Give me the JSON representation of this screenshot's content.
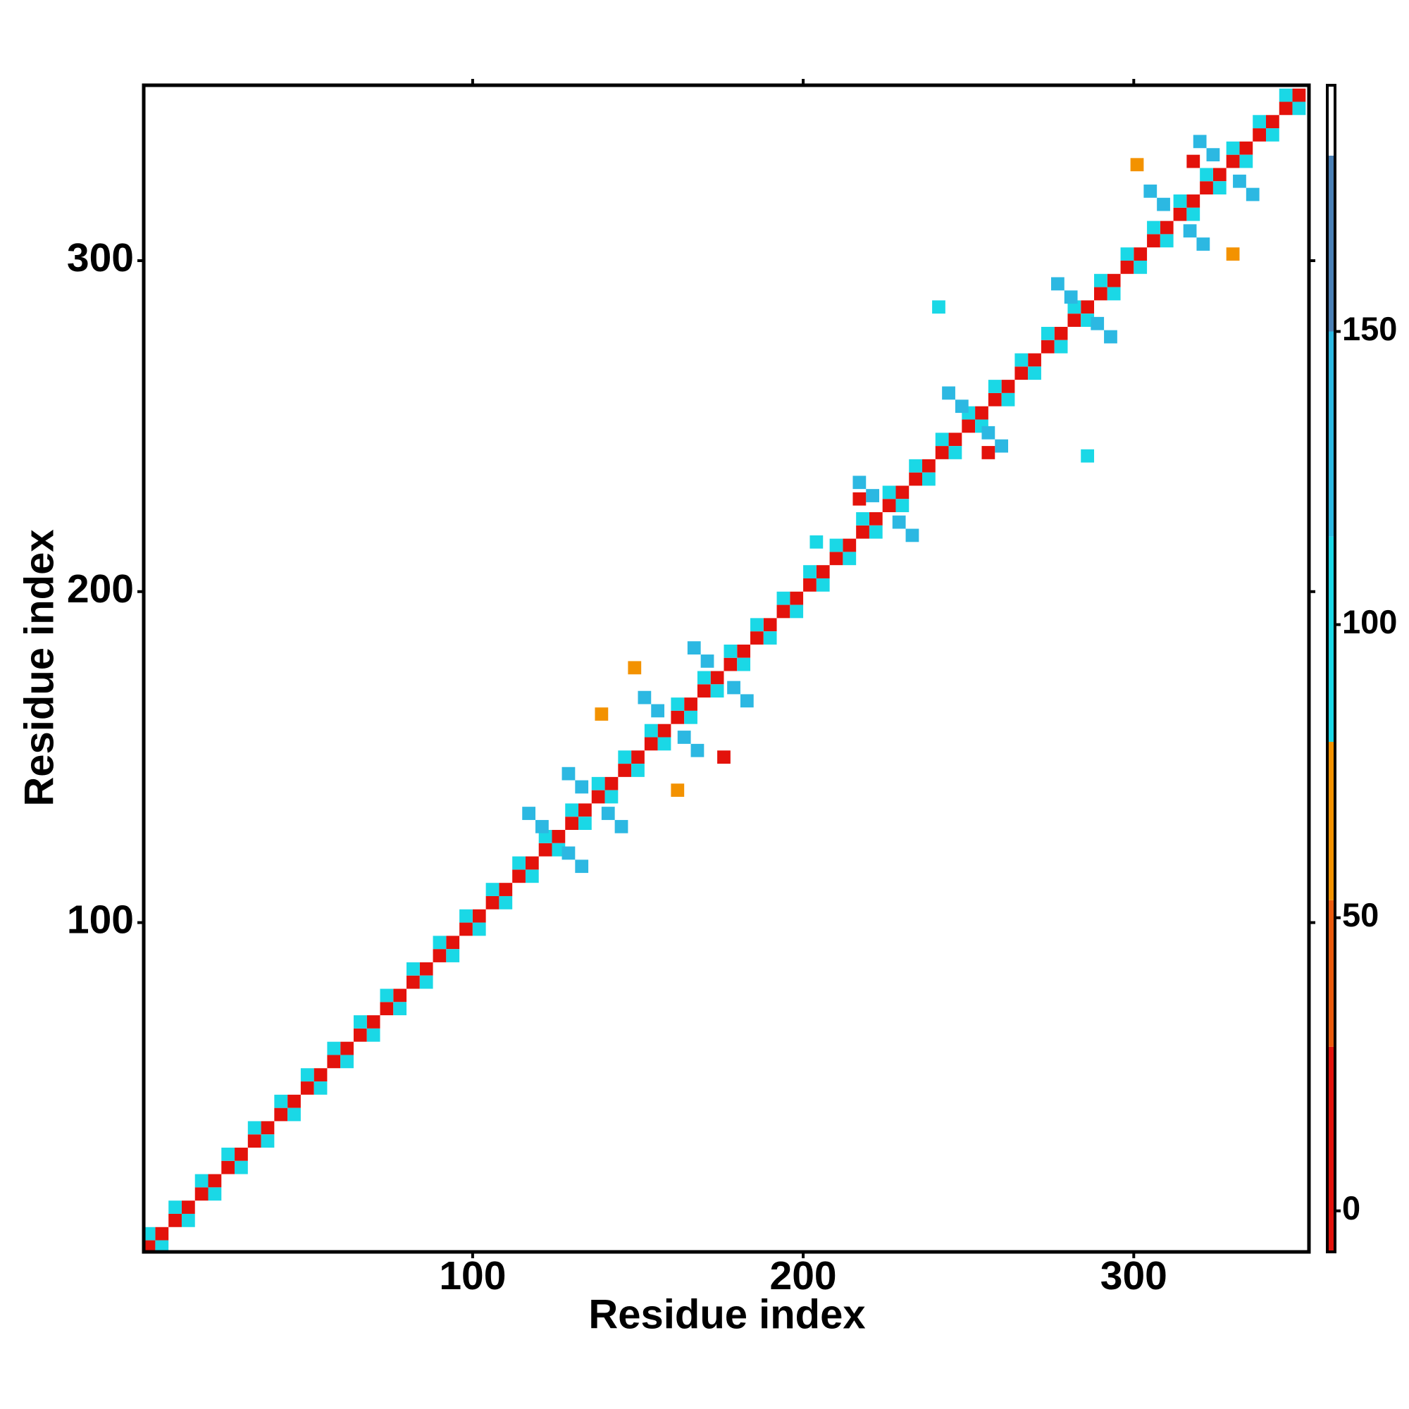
{
  "chart_data": {
    "type": "heatmap",
    "xlabel": "Residue index",
    "ylabel": "Residue index",
    "xlim": [
      0.5,
      353
    ],
    "ylim": [
      0.5,
      353
    ],
    "xticks": [
      100,
      200,
      300
    ],
    "yticks": [
      100,
      200,
      300
    ],
    "clim": [
      -7,
      192
    ],
    "cticks": [
      0,
      50,
      100,
      150
    ],
    "colorscale": [
      {
        "min": -7,
        "max": 28,
        "color": "#e3120b"
      },
      {
        "min": 28,
        "max": 53,
        "color": "#ea5a0c"
      },
      {
        "min": 53,
        "max": 80,
        "color": "#f39200"
      },
      {
        "min": 80,
        "max": 115,
        "color": "#1ad8e6"
      },
      {
        "min": 115,
        "max": 150,
        "color": "#2cb8e2"
      },
      {
        "min": 150,
        "max": 180,
        "color": "#4a7fb5"
      },
      {
        "min": 180,
        "max": 192,
        "color": "#ffffff"
      }
    ],
    "x": [
      2,
      6,
      10,
      14,
      18,
      22,
      26,
      30,
      34,
      38,
      42,
      46,
      50,
      54,
      58,
      62,
      66,
      70,
      74,
      78,
      82,
      86,
      90,
      94,
      98,
      102,
      106,
      110,
      114,
      118,
      122,
      126,
      130,
      134,
      138,
      142,
      146,
      150,
      154,
      158,
      162,
      166,
      170,
      174,
      178,
      182,
      186,
      190,
      194,
      198,
      202,
      206,
      210,
      214,
      218,
      222,
      226,
      230,
      234,
      238,
      242,
      246,
      250,
      254,
      258,
      262,
      266,
      270,
      274,
      278,
      282,
      286,
      290,
      294,
      298,
      302,
      306,
      310,
      314,
      318,
      322,
      326,
      330,
      334,
      338,
      342,
      346,
      350,
      2,
      10,
      18,
      26,
      34,
      42,
      50,
      58,
      66,
      74,
      82,
      90,
      98,
      106,
      114,
      122,
      130,
      138,
      146,
      154,
      162,
      170,
      178,
      186,
      194,
      202,
      210,
      218,
      226,
      234,
      242,
      250,
      258,
      266,
      274,
      282,
      290,
      298,
      306,
      314,
      322,
      330,
      338,
      346,
      6,
      14,
      22,
      30,
      38,
      46,
      54,
      62,
      70,
      78,
      86,
      94,
      102,
      110,
      118,
      126,
      134,
      142,
      150,
      158,
      166,
      174,
      182,
      190,
      198,
      206,
      214,
      222,
      230,
      238,
      246,
      254,
      262,
      270,
      278,
      286,
      294,
      302,
      310,
      318,
      326,
      334,
      342,
      350,
      117,
      121,
      129,
      133,
      129,
      133,
      141,
      145,
      152,
      156,
      164,
      168,
      167,
      171,
      179,
      183,
      217,
      221,
      229,
      233,
      244,
      248,
      256,
      260,
      277,
      281,
      289,
      293,
      305,
      309,
      317,
      321,
      320,
      324,
      332,
      336,
      149,
      176,
      162,
      139,
      318,
      330,
      301,
      217,
      256,
      286,
      241,
      204
    ],
    "y": [
      2,
      6,
      10,
      14,
      18,
      22,
      26,
      30,
      34,
      38,
      42,
      46,
      50,
      54,
      58,
      62,
      66,
      70,
      74,
      78,
      82,
      86,
      90,
      94,
      98,
      102,
      106,
      110,
      114,
      118,
      122,
      126,
      130,
      134,
      138,
      142,
      146,
      150,
      154,
      158,
      162,
      166,
      170,
      174,
      178,
      182,
      186,
      190,
      194,
      198,
      202,
      206,
      210,
      214,
      218,
      222,
      226,
      230,
      234,
      238,
      242,
      246,
      250,
      254,
      258,
      262,
      266,
      270,
      274,
      278,
      282,
      286,
      290,
      294,
      298,
      302,
      306,
      310,
      314,
      318,
      322,
      326,
      330,
      334,
      338,
      342,
      346,
      350,
      6,
      14,
      22,
      30,
      38,
      46,
      54,
      62,
      70,
      78,
      86,
      94,
      102,
      110,
      118,
      126,
      134,
      142,
      150,
      158,
      166,
      174,
      182,
      190,
      198,
      206,
      214,
      222,
      230,
      238,
      246,
      254,
      262,
      270,
      278,
      286,
      294,
      302,
      310,
      318,
      326,
      334,
      342,
      350,
      2,
      10,
      18,
      26,
      34,
      42,
      50,
      58,
      66,
      74,
      82,
      90,
      98,
      106,
      114,
      122,
      130,
      138,
      146,
      154,
      162,
      170,
      178,
      186,
      194,
      202,
      210,
      218,
      226,
      234,
      242,
      250,
      258,
      266,
      274,
      282,
      290,
      298,
      306,
      314,
      322,
      330,
      338,
      346,
      133,
      129,
      121,
      117,
      145,
      141,
      133,
      129,
      168,
      164,
      156,
      152,
      183,
      179,
      171,
      167,
      233,
      229,
      221,
      217,
      260,
      256,
      248,
      244,
      293,
      289,
      281,
      277,
      321,
      317,
      309,
      305,
      336,
      332,
      324,
      320,
      177,
      150,
      140,
      163,
      330,
      302,
      329,
      228,
      242,
      241,
      286,
      215
    ],
    "values": [
      10,
      10,
      10,
      10,
      10,
      10,
      10,
      10,
      10,
      10,
      10,
      10,
      10,
      10,
      10,
      10,
      10,
      10,
      10,
      10,
      10,
      10,
      10,
      10,
      10,
      10,
      10,
      10,
      10,
      10,
      10,
      10,
      10,
      10,
      10,
      10,
      10,
      10,
      10,
      10,
      10,
      10,
      10,
      10,
      10,
      10,
      10,
      10,
      10,
      10,
      10,
      10,
      10,
      10,
      10,
      10,
      10,
      10,
      10,
      10,
      10,
      10,
      10,
      10,
      10,
      10,
      10,
      10,
      10,
      10,
      10,
      10,
      10,
      10,
      10,
      10,
      10,
      10,
      10,
      10,
      10,
      10,
      10,
      10,
      10,
      10,
      10,
      10,
      95,
      95,
      95,
      95,
      95,
      95,
      95,
      95,
      95,
      95,
      95,
      95,
      95,
      95,
      95,
      95,
      95,
      95,
      95,
      95,
      95,
      95,
      95,
      95,
      95,
      95,
      95,
      95,
      95,
      95,
      95,
      95,
      95,
      95,
      95,
      95,
      95,
      95,
      95,
      95,
      95,
      95,
      95,
      95,
      95,
      95,
      95,
      95,
      95,
      95,
      95,
      95,
      95,
      95,
      95,
      95,
      95,
      95,
      95,
      95,
      95,
      95,
      95,
      95,
      95,
      95,
      95,
      95,
      95,
      95,
      95,
      95,
      95,
      95,
      95,
      95,
      95,
      95,
      95,
      95,
      95,
      95,
      95,
      95,
      95,
      95,
      95,
      95,
      140,
      140,
      140,
      140,
      140,
      140,
      140,
      140,
      140,
      140,
      140,
      140,
      140,
      140,
      140,
      140,
      140,
      140,
      140,
      140,
      140,
      140,
      140,
      140,
      140,
      140,
      140,
      140,
      140,
      140,
      140,
      140,
      140,
      140,
      140,
      140,
      60,
      20,
      60,
      60,
      20,
      60,
      60,
      20,
      20,
      100,
      100,
      100
    ]
  }
}
